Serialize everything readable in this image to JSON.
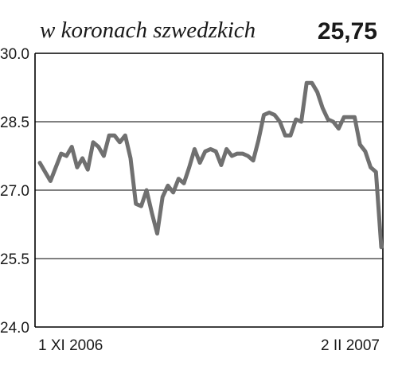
{
  "chart_data": {
    "type": "line",
    "title": "w koronach szwedzkich",
    "last_value_label": "25,75",
    "ylim": [
      24.0,
      30.0
    ],
    "y_ticks": [
      "24.0",
      "25.5",
      "27.0",
      "28.5",
      "30.0"
    ],
    "y_tick_values": [
      24.0,
      25.5,
      27.0,
      28.5,
      30.0
    ],
    "x_start_label": "1 XI 2006",
    "x_end_label": "2 II 2007",
    "grid": true,
    "colors": {
      "line": "#707070",
      "grid": "#000000",
      "text": "#1a1a1a"
    },
    "series": [
      {
        "values": [
          27.6,
          27.4,
          27.2,
          27.5,
          27.8,
          27.75,
          27.95,
          27.5,
          27.7,
          27.45,
          28.05,
          27.95,
          27.75,
          28.2,
          28.2,
          28.05,
          28.2,
          27.7,
          26.7,
          26.65,
          27.0,
          26.5,
          26.05,
          26.85,
          27.1,
          26.95,
          27.25,
          27.15,
          27.5,
          27.9,
          27.6,
          27.85,
          27.9,
          27.85,
          27.55,
          27.9,
          27.75,
          27.8,
          27.8,
          27.75,
          27.65,
          28.1,
          28.65,
          28.7,
          28.65,
          28.5,
          28.2,
          28.2,
          28.55,
          28.5,
          29.35,
          29.35,
          29.15,
          28.8,
          28.55,
          28.5,
          28.35,
          28.6,
          28.6,
          28.6,
          28.0,
          27.85,
          27.5,
          27.4,
          25.75
        ]
      }
    ]
  }
}
